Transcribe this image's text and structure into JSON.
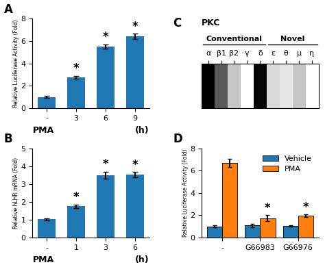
{
  "chart_data": [
    {
      "type": "bar",
      "title": "A",
      "categories": [
        "-",
        "3",
        "6",
        "9"
      ],
      "values": [
        1.0,
        2.75,
        5.5,
        6.4
      ],
      "errors": [
        0.08,
        0.15,
        0.2,
        0.25
      ],
      "xlabel": "PMA",
      "ylabel": "Relative Luciferase Activity (Fold)",
      "ylim": [
        0,
        8
      ],
      "yticks": [
        0,
        2,
        4,
        6,
        8
      ],
      "annotations": [
        {
          "text": "(h)"
        },
        {
          "text": "*",
          "category": "3"
        },
        {
          "text": "*",
          "category": "6"
        },
        {
          "text": "*",
          "category": "9"
        }
      ]
    },
    {
      "type": "bar",
      "title": "B",
      "categories": [
        "-",
        "1",
        "3",
        "6"
      ],
      "values": [
        1.03,
        1.75,
        3.5,
        3.52
      ],
      "errors": [
        0.06,
        0.1,
        0.2,
        0.15
      ],
      "xlabel": "PMA",
      "ylabel": "Relative hLHR mRNA (Fold)",
      "ylim": [
        0,
        5
      ],
      "yticks": [
        0,
        1,
        2,
        3,
        4,
        5
      ],
      "annotations": [
        {
          "text": "(h)"
        },
        {
          "text": "*",
          "category": "1"
        },
        {
          "text": "*",
          "category": "3"
        },
        {
          "text": "*",
          "category": "6"
        }
      ]
    },
    {
      "type": "heatmap",
      "title": "C",
      "subtitle": "PKC",
      "categories": [
        "α",
        "β1",
        "β2",
        "γ",
        "δ",
        "ε",
        "θ",
        "μ",
        "η"
      ],
      "cells": [
        [
          0.9,
          0.65,
          0.3,
          0.0,
          0.88,
          0.22,
          0.16,
          0.3,
          0.0
        ]
      ],
      "tick_labels": "x",
      "annotations": [
        {
          "text": "Conventional",
          "from": "α",
          "to": "δ"
        },
        {
          "text": "Novel",
          "from": "ε",
          "to": "η"
        }
      ]
    },
    {
      "type": "bar",
      "title": "D",
      "categories": [
        "-",
        "G66983",
        "G66976"
      ],
      "series": [
        {
          "name": "Vehicle",
          "values": [
            1.0,
            1.1,
            1.05
          ],
          "errors": [
            0.1,
            0.15,
            0.08
          ]
        },
        {
          "name": "PMA",
          "values": [
            6.7,
            1.75,
            1.95
          ],
          "errors": [
            0.38,
            0.25,
            0.12
          ]
        }
      ],
      "ylabel": "Relative Luciferase Activity (Fold)",
      "ylim": [
        0,
        8
      ],
      "yticks": [
        0,
        2,
        4,
        6,
        8
      ],
      "legend": "upper right",
      "annotations": [
        {
          "text": "*",
          "category": "G66983",
          "series": "PMA"
        },
        {
          "text": "*",
          "category": "G66976",
          "series": "PMA"
        }
      ]
    }
  ]
}
